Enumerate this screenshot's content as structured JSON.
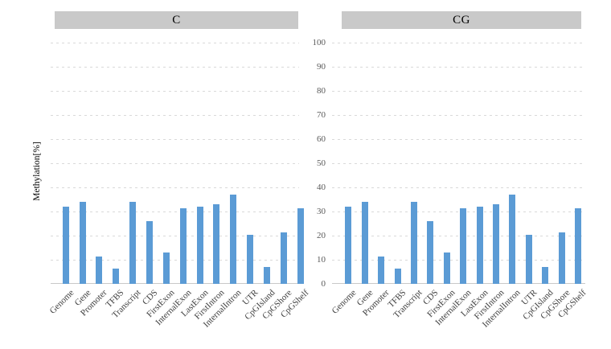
{
  "figure": {
    "y_axis_title": "Methylation[%]",
    "y_ticks": [
      "0",
      "10",
      "20",
      "30",
      "40",
      "50",
      "60",
      "70",
      "80",
      "90",
      "100"
    ]
  },
  "chart_data": [
    {
      "type": "bar",
      "title": "C",
      "categories": [
        "Genome",
        "Gene",
        "Promoter",
        "TFBS",
        "Transcript",
        "CDS",
        "FirstExon",
        "InternalExon",
        "LastExon",
        "FirstIntron",
        "InternalIntron",
        "UTR",
        "CpGIsland",
        "CpGShore",
        "CpGShelf"
      ],
      "values": [
        32,
        34,
        11.5,
        6.2,
        34,
        26,
        13,
        31.5,
        32,
        33,
        37,
        20.5,
        7,
        21.3,
        31.2
      ],
      "xlabel": "",
      "ylabel": "Methylation[%]",
      "ylim": [
        0,
        100
      ],
      "grid": "horizontal-dashed",
      "legend": "none",
      "bar_color": "#5b9bd5"
    },
    {
      "type": "bar",
      "title": "CG",
      "categories": [
        "Genome",
        "Gene",
        "Promoter",
        "TFBS",
        "Transcript",
        "CDS",
        "FirstExon",
        "InternalExon",
        "LastExon",
        "FirstIntron",
        "InternalIntron",
        "UTR",
        "CpGIsland",
        "CpGShore",
        "CpGShelf"
      ],
      "values": [
        32,
        34,
        11.5,
        6.2,
        34,
        26,
        13,
        31.5,
        32,
        33,
        37,
        20.5,
        7,
        21.3,
        31.2
      ],
      "xlabel": "",
      "ylabel": "Methylation[%]",
      "ylim": [
        0,
        100
      ],
      "grid": "horizontal-dashed",
      "legend": "none",
      "bar_color": "#5b9bd5"
    }
  ],
  "colors": {
    "bar": "#5b9bd5",
    "panel_header_bg": "#c9c9c9",
    "gridline": "#d9d9d9",
    "axis_line": "#c9c9c9",
    "tick_text": "#595959",
    "category_text": "#404040",
    "background": "#ffffff"
  }
}
